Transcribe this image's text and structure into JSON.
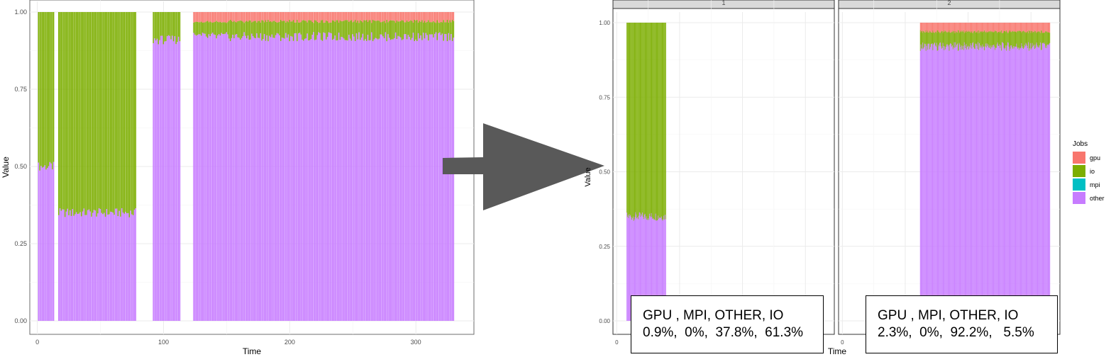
{
  "chart_data": [
    {
      "type": "bar",
      "stacked": true,
      "xlabel": "Time",
      "ylabel": "Value",
      "xlim": [
        -6,
        346
      ],
      "ylim": [
        0,
        1
      ],
      "x_ticks": [
        0,
        100,
        200,
        300
      ],
      "x_tick_labels": [
        "0",
        "100",
        "200",
        "300"
      ],
      "y_ticks": [
        0,
        0.25,
        0.5,
        0.75,
        1.0
      ],
      "y_tick_labels": [
        "0.00",
        "0.25",
        "0.50",
        "0.75",
        "1.00"
      ],
      "grid": true,
      "segments": [
        {
          "start": 1,
          "end": 13,
          "other": 0.5,
          "io": 0.5,
          "gpu": 0
        },
        {
          "start": 17,
          "end": 78,
          "other": 0.35,
          "io": 0.65,
          "gpu": 0
        },
        {
          "start": 92,
          "end": 113,
          "other": 0.91,
          "io": 0.09,
          "gpu": 0
        },
        {
          "start": 124,
          "end": 330,
          "other": 0.92,
          "io": 0.05,
          "gpu": 0.03
        }
      ]
    },
    {
      "type": "bar",
      "stacked": true,
      "facet": "1",
      "xlabel": "Time",
      "ylabel": "Value",
      "xlim": [
        -6,
        346
      ],
      "ylim": [
        0,
        1
      ],
      "x_ticks": [
        0
      ],
      "x_tick_labels": [
        "0"
      ],
      "y_ticks": [
        0,
        0.25,
        0.5,
        0.75,
        1.0
      ],
      "y_tick_labels": [
        "0.00",
        "0.25",
        "0.50",
        "0.75",
        "1.00"
      ],
      "grid": true,
      "segments": [
        {
          "start": 16,
          "end": 78,
          "other": 0.35,
          "io": 0.65,
          "gpu": 0
        }
      ]
    },
    {
      "type": "bar",
      "stacked": true,
      "facet": "2",
      "xlabel": "Time",
      "ylabel": "Value",
      "xlim": [
        -6,
        346
      ],
      "ylim": [
        0,
        1
      ],
      "x_ticks": [
        0
      ],
      "x_tick_labels": [
        "0"
      ],
      "grid": true,
      "segments": [
        {
          "start": 124,
          "end": 330,
          "other": 0.92,
          "io": 0.05,
          "gpu": 0.03
        }
      ]
    }
  ],
  "legend": {
    "title": "Jobs",
    "items": [
      {
        "label": "gpu",
        "color": "#F8766D"
      },
      {
        "label": "io",
        "color": "#7CAE00"
      },
      {
        "label": "mpi",
        "color": "#00BFC4"
      },
      {
        "label": "other",
        "color": "#C77CFF"
      }
    ]
  },
  "annotations": [
    {
      "line1": "GPU , MPI, OTHER, IO",
      "line2": "0.9%,  0%,  37.8%,  61.3%"
    },
    {
      "line1": "GPU , MPI, OTHER, IO",
      "line2": "2.3%,  0%,  92.2%,   5.5%"
    }
  ],
  "colors": {
    "gpu": "#F8766D",
    "io": "#7CAE00",
    "mpi": "#00BFC4",
    "other": "#C77CFF",
    "arrow": "#595959"
  }
}
